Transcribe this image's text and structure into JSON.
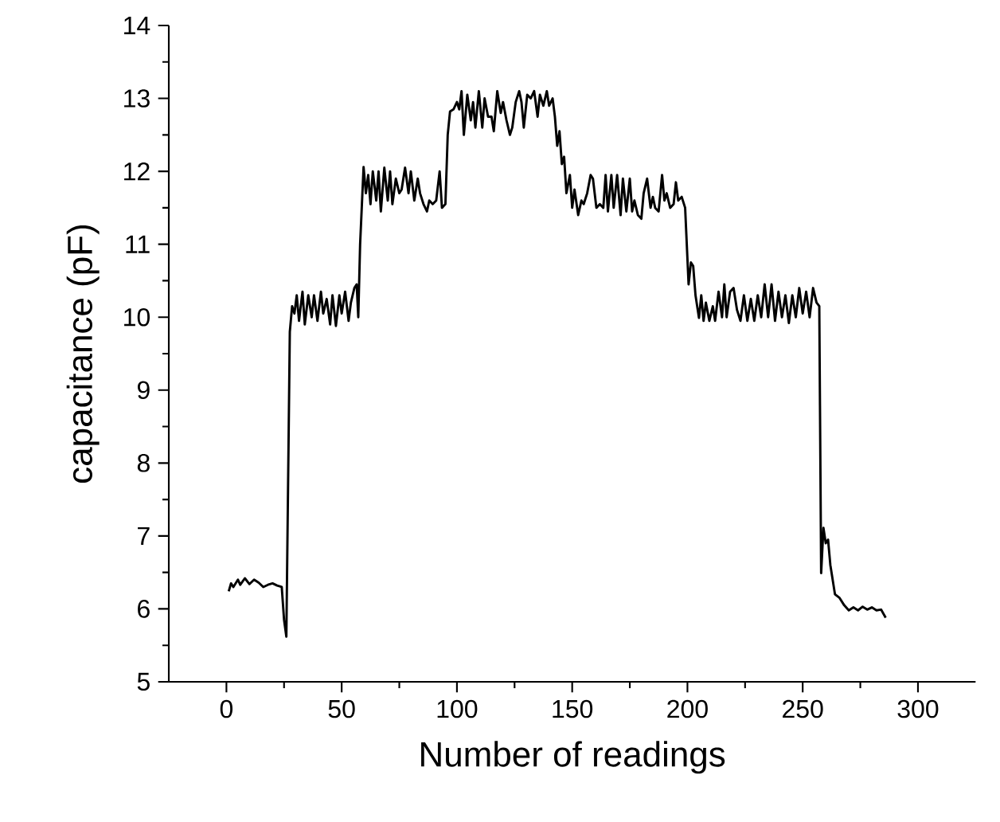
{
  "chart_data": {
    "type": "line",
    "xlabel": "Number of readings",
    "ylabel": "capacitance (pF)",
    "xlim": [
      -25,
      325
    ],
    "ylim": [
      5,
      14
    ],
    "xticks": [
      0,
      50,
      100,
      150,
      200,
      250,
      300
    ],
    "yticks": [
      5,
      6,
      7,
      8,
      9,
      10,
      11,
      12,
      13,
      14
    ],
    "marker": "none",
    "line_style": "solid",
    "x": [
      1,
      2,
      3,
      5,
      6,
      8,
      10,
      12,
      14,
      16,
      18,
      20,
      22,
      24,
      25,
      26,
      27.5,
      28.5,
      29.5,
      30.5,
      31.5,
      33,
      34,
      35.5,
      37,
      38,
      39.5,
      41,
      42,
      43.5,
      45,
      46,
      47.5,
      49,
      50,
      51.5,
      53,
      54,
      55.5,
      56.5,
      57.2,
      58,
      59.5,
      60.5,
      61.5,
      62.5,
      63.5,
      65,
      66,
      67,
      68.5,
      70,
      71,
      72,
      73.5,
      75,
      76,
      77.5,
      79,
      80,
      81.5,
      83,
      84,
      85.5,
      87,
      88,
      89.5,
      91,
      92.5,
      93.5,
      95,
      96,
      97,
      98.5,
      100,
      101,
      102,
      103,
      104.5,
      106,
      107,
      108,
      109.5,
      111,
      112,
      113.5,
      115,
      116,
      117.5,
      119,
      120,
      121.5,
      123,
      124,
      125.5,
      127,
      128,
      129,
      130.5,
      132,
      133.5,
      135,
      136,
      137.5,
      139,
      140,
      141.5,
      142.5,
      143.5,
      144.5,
      145.5,
      146.5,
      147.5,
      149,
      150,
      151,
      152.6,
      154,
      155,
      156.5,
      158,
      159,
      160.5,
      162,
      163.5,
      164.5,
      165.5,
      167,
      168,
      169.5,
      171,
      172,
      173.5,
      175,
      176,
      177,
      178.5,
      180,
      181,
      182.5,
      184,
      185,
      186,
      187.5,
      189,
      190,
      191,
      192.5,
      194,
      195,
      196,
      197.5,
      199,
      200.5,
      201.5,
      202.5,
      203.5,
      205,
      206,
      207,
      208,
      209.5,
      211,
      212,
      213.5,
      215,
      216,
      217,
      218.5,
      220,
      221.5,
      223,
      224.5,
      226,
      227.5,
      229,
      230.5,
      232,
      233.5,
      235,
      236.5,
      238,
      239.5,
      241,
      242.5,
      244,
      245.5,
      247,
      248.5,
      250,
      251.5,
      253,
      254.5,
      256,
      257.2,
      258,
      259,
      260,
      261,
      262,
      264,
      266,
      268,
      270,
      272,
      274,
      276,
      278,
      280,
      282,
      284,
      286
    ],
    "series": [
      {
        "color": "#000000",
        "values": [
          6.24,
          6.35,
          6.3,
          6.4,
          6.33,
          6.42,
          6.34,
          6.4,
          6.36,
          6.3,
          6.33,
          6.35,
          6.32,
          6.3,
          5.85,
          5.62,
          9.8,
          10.15,
          10.05,
          10.3,
          9.95,
          10.35,
          9.9,
          10.3,
          10.0,
          10.3,
          9.95,
          10.35,
          10.05,
          10.25,
          9.9,
          10.3,
          9.88,
          10.3,
          10.05,
          10.35,
          9.95,
          10.2,
          10.4,
          10.45,
          10.0,
          11.0,
          12.06,
          11.7,
          11.95,
          11.55,
          12.0,
          11.6,
          12.0,
          11.45,
          12.05,
          11.6,
          12.0,
          11.55,
          11.9,
          11.7,
          11.75,
          12.05,
          11.7,
          12.0,
          11.6,
          11.9,
          11.7,
          11.55,
          11.45,
          11.6,
          11.55,
          11.6,
          12.0,
          11.5,
          11.55,
          12.5,
          12.82,
          12.85,
          12.95,
          12.85,
          13.1,
          12.5,
          13.05,
          12.7,
          12.95,
          12.6,
          13.1,
          12.6,
          13.0,
          12.75,
          12.75,
          12.55,
          13.1,
          12.8,
          12.95,
          12.7,
          12.5,
          12.6,
          12.95,
          13.1,
          12.95,
          12.6,
          13.05,
          13.0,
          13.1,
          12.75,
          13.05,
          12.9,
          13.1,
          12.9,
          13.0,
          12.75,
          12.35,
          12.55,
          12.1,
          12.2,
          11.7,
          11.95,
          11.5,
          11.75,
          11.4,
          11.6,
          11.55,
          11.7,
          11.95,
          11.9,
          11.5,
          11.55,
          11.5,
          11.95,
          11.45,
          11.95,
          11.5,
          11.95,
          11.4,
          11.9,
          11.45,
          11.9,
          11.45,
          11.6,
          11.4,
          11.35,
          11.7,
          11.9,
          11.5,
          11.65,
          11.5,
          11.45,
          11.95,
          11.6,
          11.7,
          11.5,
          11.55,
          11.85,
          11.6,
          11.65,
          11.5,
          10.45,
          10.75,
          10.7,
          10.3,
          9.99,
          10.3,
          9.95,
          10.2,
          9.95,
          10.15,
          9.95,
          10.35,
          10.0,
          10.45,
          10.0,
          10.35,
          10.4,
          10.1,
          9.95,
          10.3,
          9.95,
          10.25,
          9.95,
          10.3,
          10.0,
          10.45,
          10.0,
          10.45,
          9.95,
          10.35,
          10.0,
          10.3,
          9.92,
          10.3,
          10.0,
          10.4,
          10.05,
          10.35,
          10.0,
          10.4,
          10.2,
          10.15,
          6.49,
          7.11,
          6.9,
          6.95,
          6.6,
          6.2,
          6.15,
          6.05,
          5.98,
          6.02,
          5.98,
          6.03,
          5.99,
          6.02,
          5.98,
          5.99,
          5.88
        ]
      }
    ]
  }
}
